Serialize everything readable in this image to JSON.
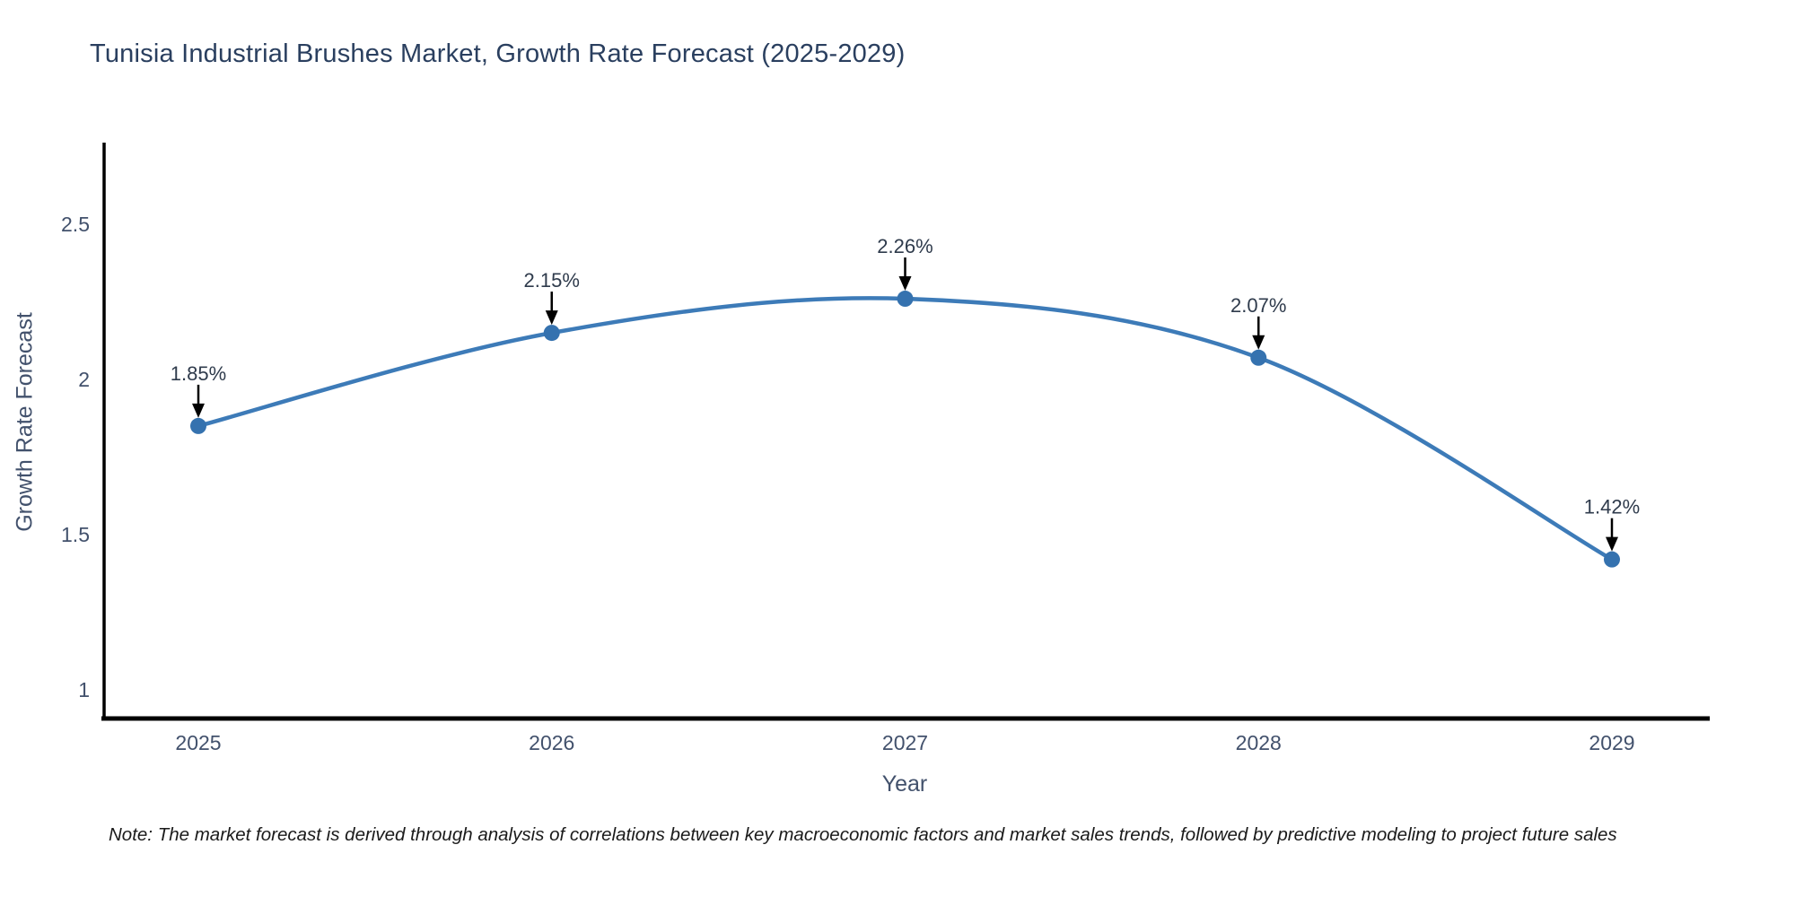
{
  "header": {
    "title": "Tunisia Industrial Brushes Market, Growth Rate Forecast (2025-2029)"
  },
  "footer": {
    "note": "Note: The market forecast is derived through analysis of correlations between key macroeconomic factors and market sales trends, followed by predictive modeling to project future sales"
  },
  "chart_data": {
    "type": "line",
    "line_shape": "spline",
    "title": "Tunisia Industrial Brushes Market, Growth Rate Forecast (2025-2029)",
    "xlabel": "Year",
    "ylabel": "Growth Rate Forecast",
    "x": [
      2025,
      2026,
      2027,
      2028,
      2029
    ],
    "y": [
      1.85,
      2.15,
      2.26,
      2.07,
      1.42
    ],
    "point_labels": [
      "1.85%",
      "2.15%",
      "2.26%",
      "2.07%",
      "1.42%"
    ],
    "xticks": [
      "2025",
      "2026",
      "2027",
      "2028",
      "2029"
    ],
    "yticks": [
      "1",
      "1.5",
      "2",
      "2.5"
    ],
    "ytick_values": [
      1,
      1.5,
      2,
      2.5
    ],
    "xlim": [
      2024.73,
      2029.28
    ],
    "ylim": [
      0.907,
      2.763
    ],
    "grid": false,
    "legend": false,
    "annotation_arrows": true,
    "colors": {
      "line": "#3d7bb8",
      "marker": "#3572af",
      "axis_line": "#000000",
      "title_text": "#2a3f5f",
      "tick_text": "#42516c",
      "annotation_text": "#2f3b4c",
      "annotation_arrow": "#000000",
      "note_text": "#1a1a1a",
      "background": "#ffffff"
    }
  }
}
